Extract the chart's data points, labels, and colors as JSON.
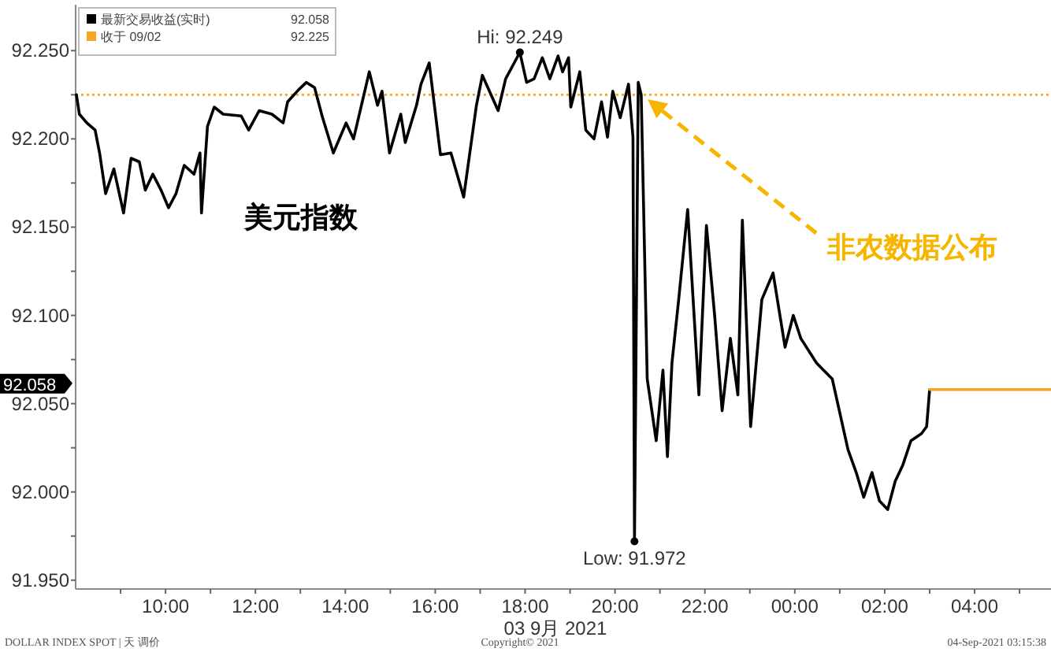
{
  "chart_data": {
    "type": "line",
    "xlabel": "03 9月 2021",
    "xlim": [
      "2021-09-03T08:00",
      "2021-09-04T05:42"
    ],
    "ylim": [
      91.945,
      92.276
    ],
    "xticks": [
      {
        "value": "2021-09-03T09:00",
        "label": null
      },
      {
        "value": "2021-09-03T10:00",
        "label": "10:00"
      },
      {
        "value": "2021-09-03T11:00",
        "label": null
      },
      {
        "value": "2021-09-03T12:00",
        "label": "12:00"
      },
      {
        "value": "2021-09-03T13:00",
        "label": null
      },
      {
        "value": "2021-09-03T14:00",
        "label": "14:00"
      },
      {
        "value": "2021-09-03T15:00",
        "label": null
      },
      {
        "value": "2021-09-03T16:00",
        "label": "16:00"
      },
      {
        "value": "2021-09-03T17:00",
        "label": null
      },
      {
        "value": "2021-09-03T18:00",
        "label": "18:00"
      },
      {
        "value": "2021-09-03T19:00",
        "label": null
      },
      {
        "value": "2021-09-03T20:00",
        "label": "20:00"
      },
      {
        "value": "2021-09-03T21:00",
        "label": null
      },
      {
        "value": "2021-09-03T22:00",
        "label": "22:00"
      },
      {
        "value": "2021-09-03T23:00",
        "label": null
      },
      {
        "value": "2021-09-04T00:00",
        "label": "00:00"
      },
      {
        "value": "2021-09-04T01:00",
        "label": null
      },
      {
        "value": "2021-09-04T02:00",
        "label": "02:00"
      },
      {
        "value": "2021-09-04T03:00",
        "label": null
      },
      {
        "value": "2021-09-04T04:00",
        "label": "04:00"
      },
      {
        "value": "2021-09-04T05:00",
        "label": null
      }
    ],
    "yticks": [
      {
        "value": 91.95,
        "label": "91.950"
      },
      {
        "value": 91.975,
        "label": null
      },
      {
        "value": 92.0,
        "label": "92.000"
      },
      {
        "value": 92.025,
        "label": null
      },
      {
        "value": 92.05,
        "label": "92.050"
      },
      {
        "value": 92.075,
        "label": null
      },
      {
        "value": 92.1,
        "label": "92.100"
      },
      {
        "value": 92.125,
        "label": null
      },
      {
        "value": 92.15,
        "label": "92.150"
      },
      {
        "value": 92.175,
        "label": null
      },
      {
        "value": 92.2,
        "label": "92.200"
      },
      {
        "value": 92.225,
        "label": null
      },
      {
        "value": 92.25,
        "label": "92.250"
      }
    ],
    "legend": "top left",
    "line_style": "solid",
    "series": [
      {
        "name": "最新交易收益(实时)",
        "color": "#000000",
        "x": [
          "2021-09-03T08:01",
          "2021-09-03T08:05",
          "2021-09-03T08:15",
          "2021-09-03T08:26",
          "2021-09-03T08:32",
          "2021-09-03T08:40",
          "2021-09-03T08:51",
          "2021-09-03T09:04",
          "2021-09-03T09:14",
          "2021-09-03T09:25",
          "2021-09-03T09:33",
          "2021-09-03T09:43",
          "2021-09-03T09:54",
          "2021-09-03T10:04",
          "2021-09-03T10:14",
          "2021-09-03T10:25",
          "2021-09-03T10:38",
          "2021-09-03T10:46",
          "2021-09-03T10:48",
          "2021-09-03T10:56",
          "2021-09-03T11:05",
          "2021-09-03T11:17",
          "2021-09-03T11:41",
          "2021-09-03T11:51",
          "2021-09-03T12:05",
          "2021-09-03T12:22",
          "2021-09-03T12:37",
          "2021-09-03T12:43",
          "2021-09-03T12:58",
          "2021-09-03T13:08",
          "2021-09-03T13:19",
          "2021-09-03T13:29",
          "2021-09-03T13:44",
          "2021-09-03T14:01",
          "2021-09-03T14:11",
          "2021-09-03T14:32",
          "2021-09-03T14:43",
          "2021-09-03T14:49",
          "2021-09-03T14:59",
          "2021-09-03T15:14",
          "2021-09-03T15:20",
          "2021-09-03T15:35",
          "2021-09-03T15:41",
          "2021-09-03T15:52",
          "2021-09-03T16:07",
          "2021-09-03T16:21",
          "2021-09-03T16:38",
          "2021-09-03T16:55",
          "2021-09-03T17:03",
          "2021-09-03T17:24",
          "2021-09-03T17:34",
          "2021-09-03T17:53",
          "2021-09-03T18:02",
          "2021-09-03T18:12",
          "2021-09-03T18:23",
          "2021-09-03T18:33",
          "2021-09-03T18:44",
          "2021-09-03T18:50",
          "2021-09-03T18:58",
          "2021-09-03T19:01",
          "2021-09-03T19:13",
          "2021-09-03T19:21",
          "2021-09-03T19:32",
          "2021-09-03T19:42",
          "2021-09-03T19:50",
          "2021-09-03T19:57",
          "2021-09-03T20:07",
          "2021-09-03T20:18",
          "2021-09-03T20:24",
          "2021-09-03T20:26",
          "2021-09-03T20:31",
          "2021-09-03T20:35",
          "2021-09-03T20:43",
          "2021-09-03T20:55",
          "2021-09-03T21:04",
          "2021-09-03T21:10",
          "2021-09-03T21:16",
          "2021-09-03T21:25",
          "2021-09-03T21:37",
          "2021-09-03T21:52",
          "2021-09-03T22:02",
          "2021-09-03T22:13",
          "2021-09-03T22:23",
          "2021-09-03T22:34",
          "2021-09-03T22:44",
          "2021-09-03T22:50",
          "2021-09-03T23:01",
          "2021-09-03T23:16",
          "2021-09-03T23:31",
          "2021-09-03T23:47",
          "2021-09-03T23:58",
          "2021-09-04T00:08",
          "2021-09-04T00:29",
          "2021-09-04T00:50",
          "2021-09-04T01:11",
          "2021-09-04T01:22",
          "2021-09-04T01:32",
          "2021-09-04T01:43",
          "2021-09-04T01:53",
          "2021-09-04T02:04",
          "2021-09-04T02:14",
          "2021-09-04T02:24",
          "2021-09-04T02:35",
          "2021-09-04T02:49",
          "2021-09-04T02:56",
          "2021-09-04T03:00"
        ],
        "values": [
          92.225,
          92.214,
          92.209,
          92.205,
          92.192,
          92.169,
          92.183,
          92.158,
          92.189,
          92.187,
          92.171,
          92.18,
          92.171,
          92.161,
          92.169,
          92.185,
          92.18,
          92.192,
          92.158,
          92.207,
          92.218,
          92.214,
          92.213,
          92.205,
          92.216,
          92.214,
          92.209,
          92.221,
          92.228,
          92.232,
          92.229,
          92.213,
          92.192,
          92.209,
          92.2,
          92.238,
          92.219,
          92.227,
          92.192,
          92.214,
          92.198,
          92.219,
          92.231,
          92.243,
          92.191,
          92.192,
          92.167,
          92.219,
          92.236,
          92.216,
          92.234,
          92.249,
          92.232,
          92.234,
          92.246,
          92.234,
          92.247,
          92.238,
          92.246,
          92.218,
          92.238,
          92.205,
          92.2,
          92.221,
          92.201,
          92.227,
          92.212,
          92.231,
          92.201,
          91.972,
          92.232,
          92.225,
          92.064,
          92.029,
          92.069,
          92.02,
          92.073,
          92.109,
          92.16,
          92.055,
          92.151,
          92.1,
          92.046,
          92.087,
          92.055,
          92.154,
          92.037,
          92.109,
          92.124,
          92.082,
          92.1,
          92.087,
          92.073,
          92.064,
          92.024,
          92.011,
          91.997,
          92.011,
          91.995,
          91.99,
          92.006,
          92.015,
          92.029,
          92.033,
          92.037,
          92.058
        ]
      },
      {
        "color": "#f5a623",
        "x": [
          "2021-09-04T03:00",
          "2021-09-04T05:42"
        ],
        "values": [
          92.058,
          92.058
        ]
      }
    ],
    "ref_lines": [
      {
        "axis": "y",
        "value": 92.225,
        "label": "收于 09/02",
        "color": "#f5a623",
        "line_style": "dotted"
      }
    ],
    "annotations": [
      {
        "text": "Hi: 92.249",
        "x": "2021-09-03T17:53",
        "y": 92.249
      },
      {
        "text": "Low: 91.972",
        "x": "2021-09-03T20:26",
        "y": 91.972
      },
      "非农数据公布",
      "美元指数",
      "92.058",
      "92.058",
      "92.225",
      "DOLLAR INDEX SPOT | 天 调价",
      "Copyright© 2021",
      "04-Sep-2021 03:15:38"
    ]
  }
}
